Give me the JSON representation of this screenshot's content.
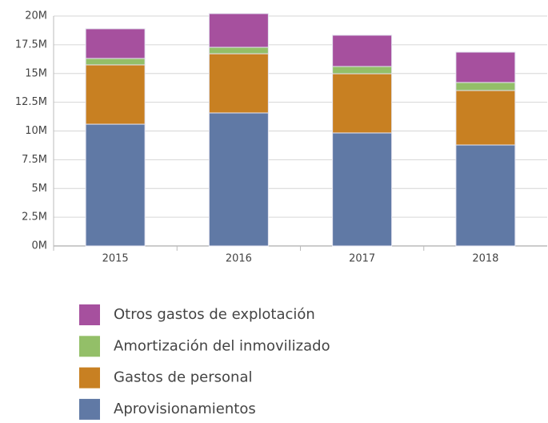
{
  "chart_data": {
    "type": "stacked_bar",
    "categories": [
      "2015",
      "2016",
      "2017",
      "2018"
    ],
    "series": [
      {
        "name": "Aprovisionamientos",
        "color": "#6079a5",
        "values": [
          10590000,
          11570000,
          9830000,
          8780000
        ]
      },
      {
        "name": "Gastos de personal",
        "color": "#c88022",
        "values": [
          5160000,
          5150000,
          5150000,
          4740000
        ]
      },
      {
        "name": "Amortización del inmovilizado",
        "color": "#93bf68",
        "values": [
          560000,
          560000,
          630000,
          700000
        ]
      },
      {
        "name": "Otros gastos de explotación",
        "color": "#a6509e",
        "values": [
          2580000,
          2930000,
          2720000,
          2640000
        ]
      }
    ],
    "ylim": [
      0,
      20000000
    ],
    "yticks": [
      {
        "value": 0,
        "label": "0M"
      },
      {
        "value": 2500000,
        "label": "2.5M"
      },
      {
        "value": 5000000,
        "label": "5M"
      },
      {
        "value": 7500000,
        "label": "7.5M"
      },
      {
        "value": 10000000,
        "label": "10M"
      },
      {
        "value": 12500000,
        "label": "12.5M"
      },
      {
        "value": 15000000,
        "label": "15M"
      },
      {
        "value": 17500000,
        "label": "17.5M"
      },
      {
        "value": 20000000,
        "label": "20M"
      }
    ],
    "grid": true,
    "legend": "bottom"
  }
}
